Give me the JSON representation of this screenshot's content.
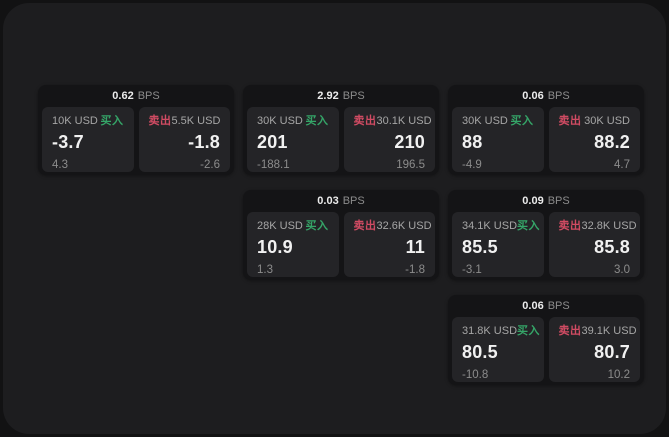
{
  "labels": {
    "bps_unit": "BPS",
    "buy": "买入",
    "sell": "卖出"
  },
  "colors": {
    "accent-buy": "#35a568",
    "accent-sell": "#d14b63"
  },
  "cards": [
    {
      "bps": "0.62",
      "buy": {
        "size": "10K USD",
        "price": "-3.7",
        "delta": "4.3"
      },
      "sell": {
        "size": "5.5K USD",
        "price": "-1.8",
        "delta": "-2.6"
      }
    },
    {
      "bps": "2.92",
      "buy": {
        "size": "30K USD",
        "price": "201",
        "delta": "-188.1"
      },
      "sell": {
        "size": "30.1K USD",
        "price": "210",
        "delta": "196.5"
      }
    },
    {
      "bps": "0.06",
      "buy": {
        "size": "30K USD",
        "price": "88",
        "delta": "-4.9"
      },
      "sell": {
        "size": "30K USD",
        "price": "88.2",
        "delta": "4.7"
      }
    },
    {
      "bps": "0.03",
      "buy": {
        "size": "28K USD",
        "price": "10.9",
        "delta": "1.3"
      },
      "sell": {
        "size": "32.6K USD",
        "price": "11",
        "delta": "-1.8"
      }
    },
    {
      "bps": "0.09",
      "buy": {
        "size": "34.1K USD",
        "price": "85.5",
        "delta": "-3.1"
      },
      "sell": {
        "size": "32.8K USD",
        "price": "85.8",
        "delta": "3.0"
      }
    },
    {
      "bps": "0.06",
      "buy": {
        "size": "31.8K USD",
        "price": "80.5",
        "delta": "-10.8"
      },
      "sell": {
        "size": "39.1K USD",
        "price": "80.7",
        "delta": "10.2"
      }
    }
  ]
}
